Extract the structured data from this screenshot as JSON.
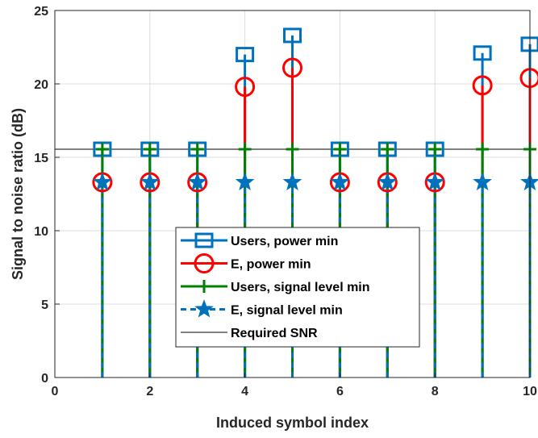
{
  "chart_data": {
    "type": "stem",
    "xlabel": "Induced symbol index",
    "ylabel": "Signal to noise ratio (dB)",
    "xlim": [
      0,
      10
    ],
    "ylim": [
      0,
      25
    ],
    "xticks": [
      "0",
      "2",
      "4",
      "6",
      "8",
      "10"
    ],
    "yticks": [
      "0",
      "5",
      "10",
      "15",
      "20",
      "25"
    ],
    "grid": true,
    "legend_position": "lower-center",
    "x": [
      1,
      2,
      3,
      4,
      5,
      6,
      7,
      8,
      9,
      10
    ],
    "series": [
      {
        "name": "Users, power min",
        "color": "#0072BD",
        "marker": "square",
        "linestyle": "solid",
        "values": [
          15.55,
          15.55,
          15.55,
          22.0,
          23.3,
          15.55,
          15.55,
          15.55,
          22.1,
          22.7
        ]
      },
      {
        "name": "E, power min",
        "color": "#FF0000",
        "marker": "circle",
        "linestyle": "solid",
        "values": [
          13.3,
          13.3,
          13.3,
          19.8,
          21.1,
          13.3,
          13.3,
          13.3,
          19.9,
          20.4
        ]
      },
      {
        "name": "Users, signal level min",
        "color": "#008000",
        "marker": "plus",
        "linestyle": "solid",
        "values": [
          15.55,
          15.55,
          15.55,
          15.55,
          15.55,
          15.55,
          15.55,
          15.55,
          15.55,
          15.55
        ]
      },
      {
        "name": "E, signal level min",
        "color": "#0072BD",
        "marker": "star",
        "linestyle": "dashed",
        "values": [
          13.3,
          13.3,
          13.3,
          13.3,
          13.3,
          13.3,
          13.3,
          13.3,
          13.3,
          13.3
        ]
      }
    ],
    "reference_line": {
      "name": "Required SNR",
      "value": 15.55,
      "color": "#000000"
    }
  }
}
